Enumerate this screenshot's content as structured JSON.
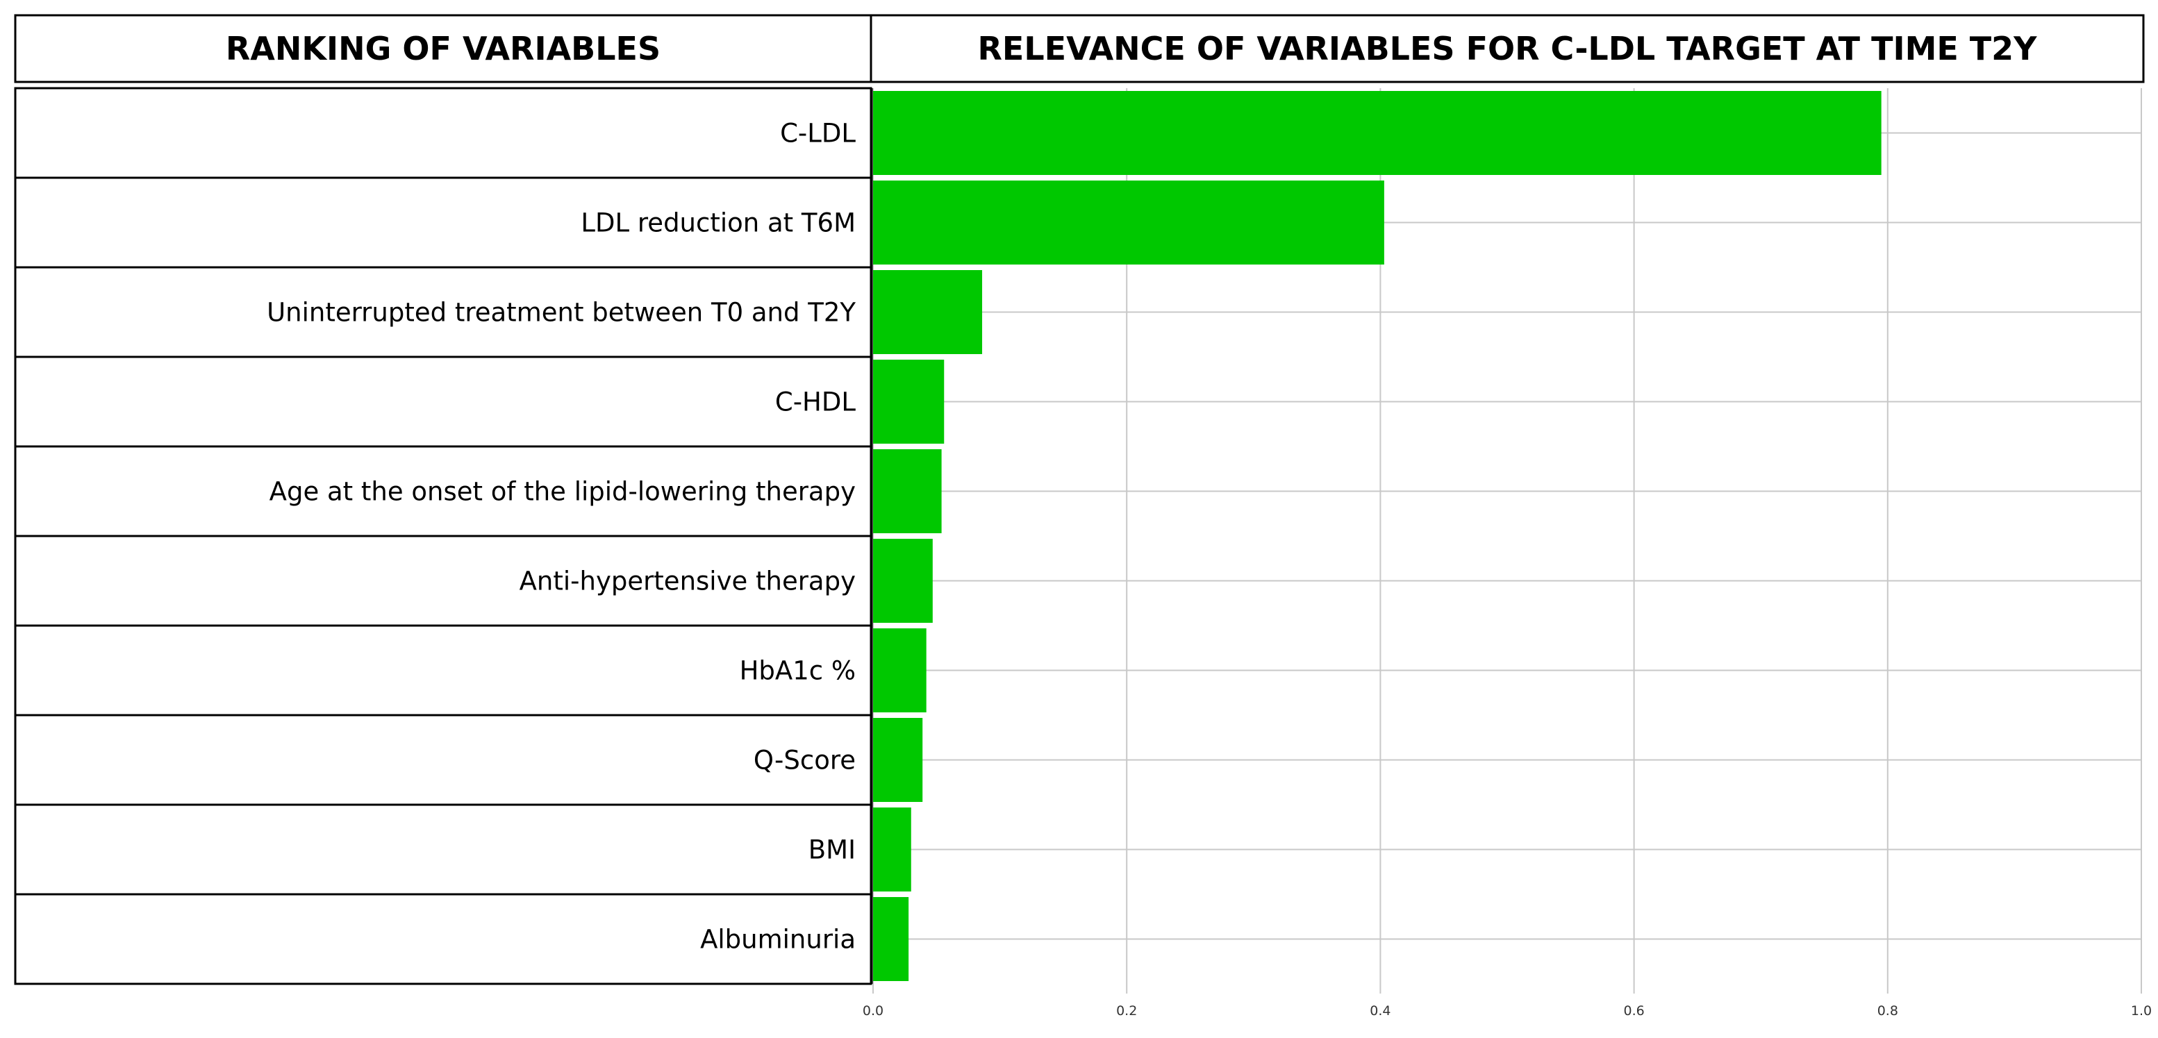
{
  "header": {
    "left_title": "RANKING OF VARIABLES",
    "right_title": "RELEVANCE OF VARIABLES FOR C-LDL TARGET AT TIME T2Y"
  },
  "colors": {
    "bar": "#00c800",
    "gridline": "#c8c8c8",
    "border": "#000000"
  },
  "chart_data": {
    "type": "bar",
    "orientation": "horizontal",
    "title": "RELEVANCE OF VARIABLES FOR C-LDL TARGET AT TIME T2Y",
    "categories": [
      "C-LDL",
      "LDL reduction at T6M",
      "Uninterrupted treatment between T0 and T2Y",
      "C-HDL",
      "Age at the onset of the lipid-lowering therapy",
      "Anti-hypertensive therapy",
      "HbA1c %",
      "Q-Score",
      "BMI",
      "Albuminuria"
    ],
    "values": [
      0.795,
      0.403,
      0.086,
      0.056,
      0.054,
      0.047,
      0.042,
      0.039,
      0.03,
      0.028
    ],
    "xlim": [
      0,
      1.0
    ],
    "xticks": [
      "0.0",
      "0.2",
      "0.4",
      "0.6",
      "0.8",
      "1.0"
    ],
    "xtick_values": [
      0,
      0.2,
      0.4,
      0.6,
      0.8,
      1.0
    ],
    "xlabel": "",
    "ylabel": "",
    "grid": true,
    "legend": "none"
  }
}
